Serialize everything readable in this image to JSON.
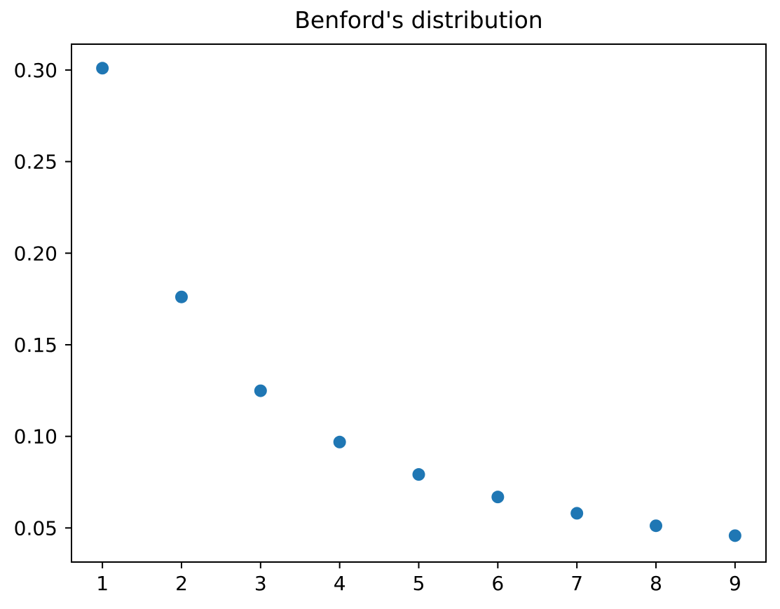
{
  "page": {
    "background": "#ffffff"
  },
  "chart_data": {
    "type": "scatter",
    "title": "Benford's distribution",
    "x": [
      1,
      2,
      3,
      4,
      5,
      6,
      7,
      8,
      9
    ],
    "y": [
      0.301,
      0.1761,
      0.1249,
      0.0969,
      0.0792,
      0.0669,
      0.058,
      0.0512,
      0.0458
    ],
    "xlabel": "",
    "ylabel": "",
    "xlim": [
      0.6,
      9.4
    ],
    "ylim": [
      0.031,
      0.3145
    ],
    "xticks": [
      1,
      2,
      3,
      4,
      5,
      6,
      7,
      8,
      9
    ],
    "xtick_labels": [
      "1",
      "2",
      "3",
      "4",
      "5",
      "6",
      "7",
      "8",
      "9"
    ],
    "yticks": [
      0.05,
      0.1,
      0.15,
      0.2,
      0.25,
      0.3
    ],
    "ytick_labels": [
      "0.05",
      "0.10",
      "0.15",
      "0.20",
      "0.25",
      "0.30"
    ],
    "marker_color": "#1f77b4",
    "marker_radius": 9,
    "axis_color": "#000000",
    "text_color": "#000000",
    "grid": false,
    "legend": null
  }
}
